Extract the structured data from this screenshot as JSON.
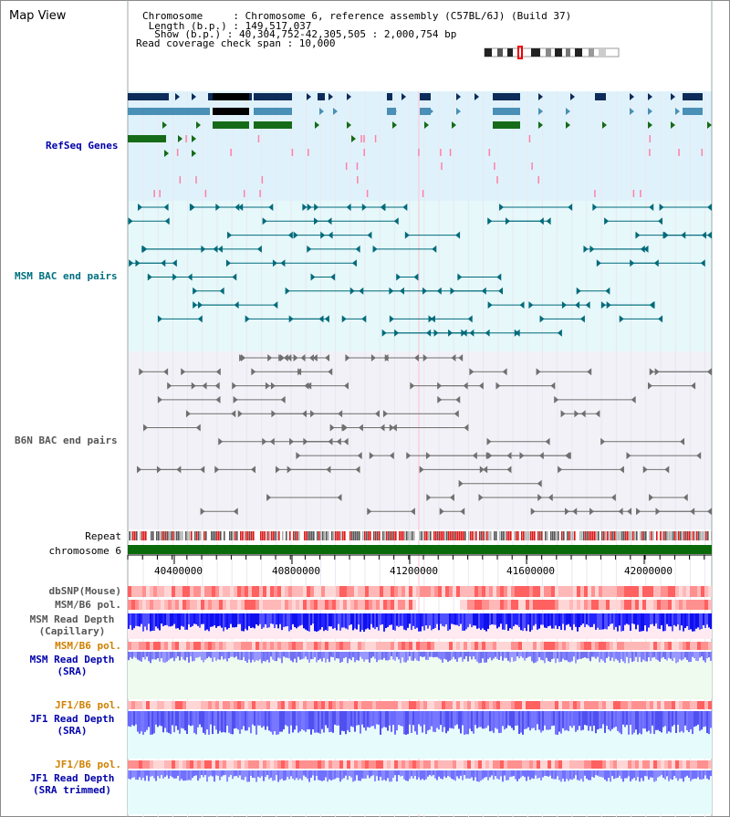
{
  "window": {
    "title": "Map View"
  },
  "info": {
    "chromosome_label": "Chromosome     : Chromosome 6, reference assembly (C57BL/6J) (Build 37)",
    "length_label": " Length (b.p.) : 149,517,037",
    "show_label": "  Show (b.p.) : 40,304,752-42,305,505 : 2,000,754 bp",
    "coverage_label": "Read coverage check span : 10,000"
  },
  "tracks": {
    "refseq": "RefSeq Genes",
    "msm_bac": "MSM BAC end pairs",
    "b6n_bac": "B6N BAC end pairs",
    "repeat": "Repeat",
    "chromosome": "chromosome 6",
    "dbsnp": "dbSNP(Mouse)",
    "msm_pol": "MSM/B6 pol.",
    "msm_depth_cap_1": "MSM Read Depth",
    "msm_depth_cap_2": "(Capillary)",
    "msm_pol2": "MSM/B6 pol.",
    "msm_depth_sra_1": "MSM Read Depth",
    "msm_depth_sra_2": "(SRA)",
    "jf1_pol": "JF1/B6 pol.",
    "jf1_depth_sra_1": "JF1 Read Depth",
    "jf1_depth_sra_2": "(SRA)",
    "jf1_pol2": "JF1/B6 pol.",
    "jf1_depth_trim_1": "JF1 Read Depth",
    "jf1_depth_trim_2": "(SRA trimmed)"
  },
  "axis": {
    "ticks": [
      "40400000",
      "40800000",
      "41200000",
      "41600000",
      "42000000"
    ]
  },
  "colors": {
    "refseq_bg": "#dff2fb",
    "msm_bg": "#e6f8fa",
    "b6n_bg": "#f1f1f7",
    "dark_navy": "#0e2c5a",
    "steel_blue": "#4a8fb5",
    "dark_green": "#166b18",
    "teal": "#006a7a",
    "grey": "#6f6f6f",
    "chromosome_green": "#0a6a0a",
    "depth_blue": "#2020ff",
    "pink_track": "#ffeaf2",
    "green_track": "#eefbee",
    "cyan_track": "#e6fbfb"
  }
}
